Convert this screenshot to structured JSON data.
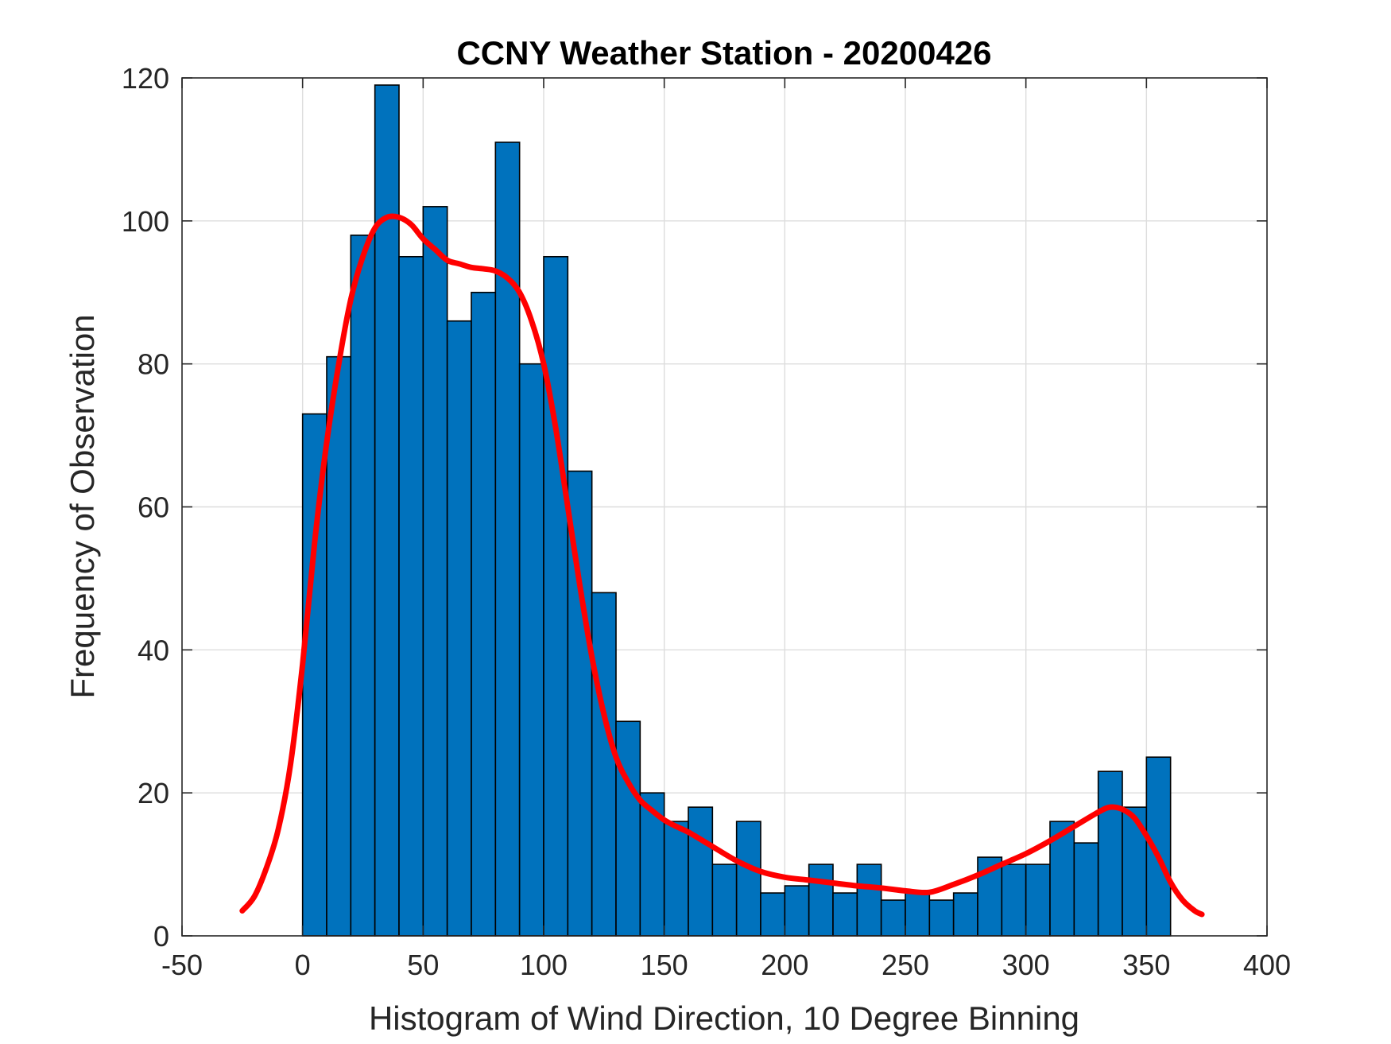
{
  "chart_data": {
    "type": "bar",
    "title": "CCNY Weather Station - 20200426",
    "xlabel": "Histogram of Wind Direction, 10 Degree Binning",
    "ylabel": "Frequency of Observation",
    "xlim": [
      -50,
      400
    ],
    "ylim": [
      0,
      120
    ],
    "xticks": [
      "-50",
      "0",
      "50",
      "100",
      "150",
      "200",
      "250",
      "300",
      "350",
      "400"
    ],
    "yticks": [
      "0",
      "20",
      "40",
      "60",
      "80",
      "100",
      "120"
    ],
    "grid": true,
    "bin_width": 10,
    "bin_edges_start": [
      0,
      10,
      20,
      30,
      40,
      50,
      60,
      70,
      80,
      90,
      100,
      110,
      120,
      130,
      140,
      150,
      160,
      170,
      180,
      190,
      200,
      210,
      220,
      230,
      240,
      250,
      260,
      270,
      280,
      290,
      300,
      310,
      320,
      330,
      340,
      350
    ],
    "values": [
      73,
      81,
      98,
      119,
      95,
      102,
      86,
      90,
      111,
      80,
      95,
      65,
      48,
      30,
      20,
      16,
      18,
      10,
      16,
      6,
      7,
      10,
      6,
      10,
      5,
      6,
      5,
      6,
      11,
      10,
      10,
      16,
      13,
      23,
      18,
      25
    ],
    "density_curve": {
      "x": [
        -25,
        -20,
        -15,
        -10,
        -5,
        0,
        5,
        10,
        15,
        20,
        25,
        30,
        35,
        40,
        45,
        50,
        55,
        60,
        65,
        70,
        75,
        80,
        85,
        90,
        95,
        100,
        105,
        110,
        115,
        120,
        125,
        130,
        135,
        140,
        145,
        150,
        155,
        160,
        170,
        180,
        190,
        200,
        210,
        220,
        230,
        240,
        250,
        260,
        270,
        280,
        290,
        300,
        310,
        320,
        330,
        335,
        340,
        345,
        350,
        355,
        360,
        365,
        370,
        373
      ],
      "y": [
        3.5,
        5.5,
        9.5,
        15,
        24,
        38,
        55,
        69,
        80,
        89,
        95,
        99,
        100.5,
        100.5,
        99.5,
        97.5,
        96,
        94.5,
        94,
        93.5,
        93.3,
        93,
        92,
        90,
        86,
        80,
        71,
        60,
        49,
        39,
        31,
        25,
        21.5,
        19,
        17.5,
        16.2,
        15.3,
        14.5,
        12.5,
        10.5,
        9,
        8.2,
        7.8,
        7.4,
        7,
        6.7,
        6.3,
        6.1,
        7.2,
        8.5,
        10,
        11.5,
        13.3,
        15.3,
        17.3,
        18,
        17.7,
        16.5,
        14,
        11,
        7.5,
        5,
        3.5,
        3
      ]
    },
    "colors": {
      "bar_fill": "#0072BD",
      "bar_edge": "#000000",
      "curve": "#FF0000",
      "grid": "#DDDDDD",
      "axes": "#262626"
    }
  }
}
